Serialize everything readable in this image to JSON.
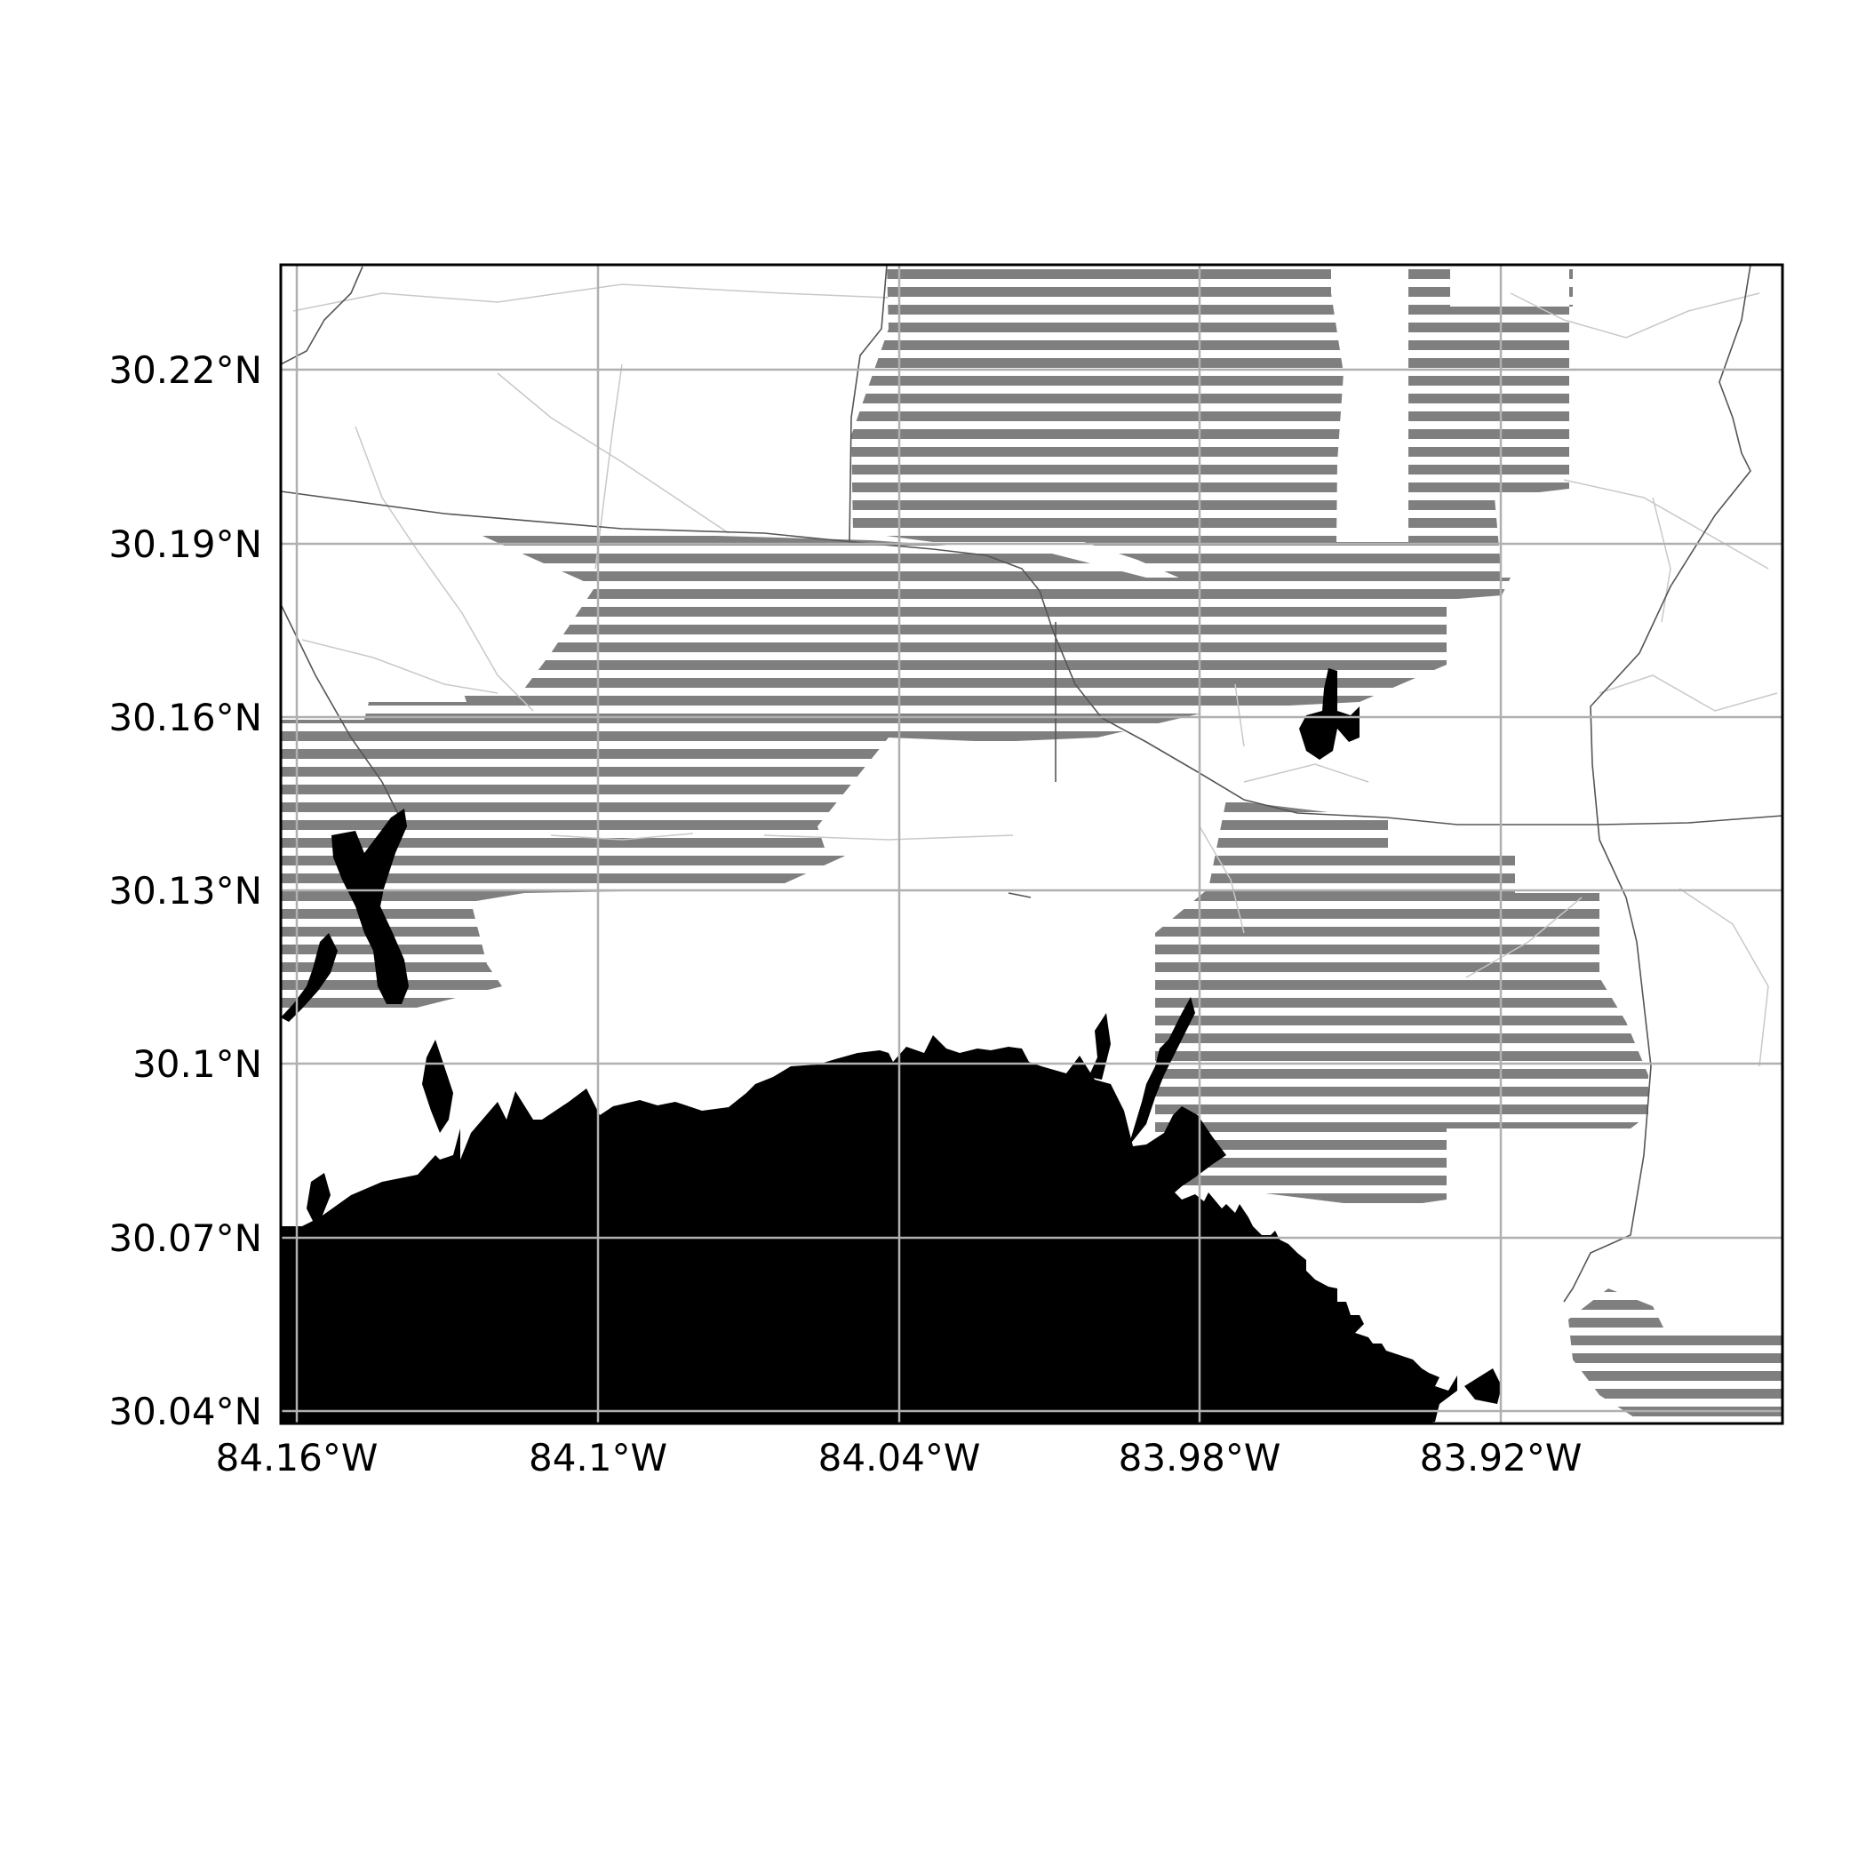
{
  "map": {
    "axes": {
      "lon_ticks": [
        "84.16°W",
        "84.1°W",
        "84.04°W",
        "83.98°W",
        "83.92°W"
      ],
      "lat_ticks": [
        "30.22°N",
        "30.19°N",
        "30.16°N",
        "30.13°N",
        "30.1°N",
        "30.07°N",
        "30.04°N"
      ],
      "gridlines": true
    },
    "colors": {
      "water": "#000000",
      "hatch": "#7f7f7f",
      "grid": "#b0b0b0",
      "roads": "#c8c8c8",
      "frame": "#000000",
      "background": "#ffffff"
    },
    "layers": [
      "water",
      "protected-area-hatching",
      "roads",
      "gridlines"
    ]
  }
}
